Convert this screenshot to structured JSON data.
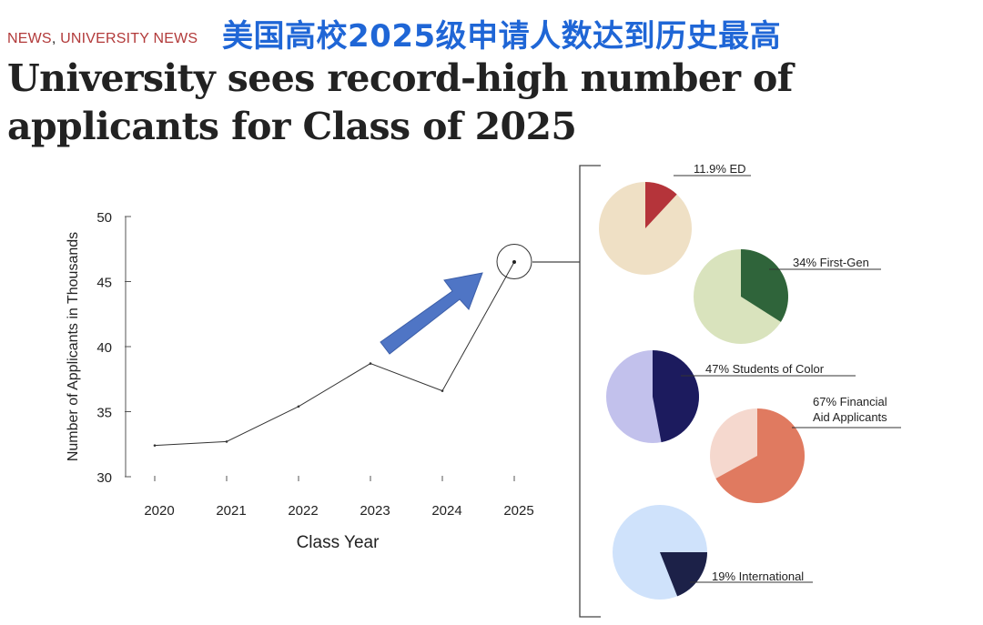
{
  "header": {
    "news_primary": "NEWS",
    "news_separator": ", ",
    "news_secondary": "UNIVERSITY NEWS",
    "banner_text": "美国高校2025级申请人数达到历史最高",
    "headline": "University sees record-high number of applicants for Class of 2025",
    "tag_color": "#b23a3a",
    "banner_color": "#1f66d6"
  },
  "chart_data": {
    "type": "line",
    "xlabel": "Class Year",
    "ylabel": "Number of Applicants in Thousands",
    "x": [
      "2020",
      "2021",
      "2022",
      "2023",
      "2024",
      "2025"
    ],
    "y_ticks": [
      30,
      35,
      40,
      45,
      50
    ],
    "ylim": [
      30,
      50
    ],
    "grid": false,
    "series": [
      {
        "values": [
          32.4,
          32.7,
          35.4,
          38.7,
          36.6,
          46.5
        ]
      }
    ],
    "highlight": {
      "x": "2025",
      "marker": "circle"
    },
    "arrow_color": "#4f75c5",
    "breakdown": [
      {
        "label": "11.9% ED",
        "percent": 11.9,
        "start_angle": 0,
        "highlight_color": "#b5343a",
        "base_color": "#efe0c5"
      },
      {
        "label": "34% First-Gen",
        "percent": 34,
        "start_angle": 0,
        "highlight_color": "#2f643a",
        "base_color": "#d9e3bd"
      },
      {
        "label": "47% Students of Color",
        "percent": 47,
        "start_angle": 0,
        "highlight_color": "#1c1b5e",
        "base_color": "#c2c1ec"
      },
      {
        "label": "67% Financial Aid Applicants",
        "percent": 67,
        "start_angle": 0,
        "highlight_color": "#e07a60",
        "base_color": "#f5d8ce"
      },
      {
        "label": "19% International",
        "percent": 19,
        "start_angle": 90,
        "highlight_color": "#1c2148",
        "base_color": "#cfe2fb"
      }
    ]
  }
}
